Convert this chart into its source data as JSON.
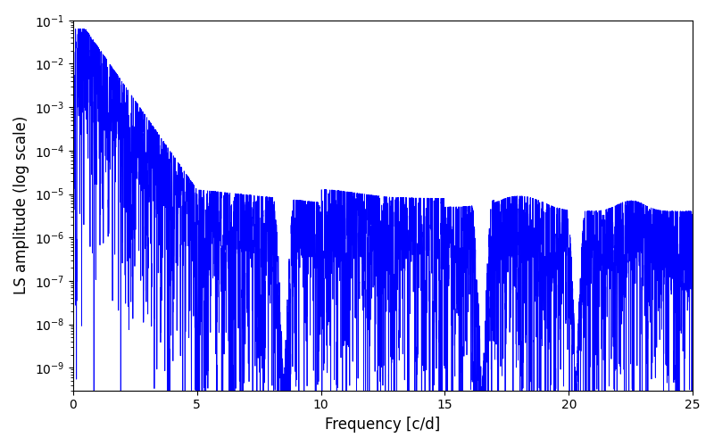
{
  "xlabel": "Frequency [c/d]",
  "ylabel": "LS amplitude (log scale)",
  "line_color": "#0000ff",
  "xlim": [
    0,
    25
  ],
  "ylim": [
    3e-10,
    0.1
  ],
  "xticks": [
    0,
    5,
    10,
    15,
    20,
    25
  ],
  "figsize": [
    8.0,
    5.0
  ],
  "dpi": 100,
  "background_color": "#ffffff",
  "seed": 123,
  "n_points": 8000,
  "freq_max": 25.0,
  "line_width": 0.6
}
